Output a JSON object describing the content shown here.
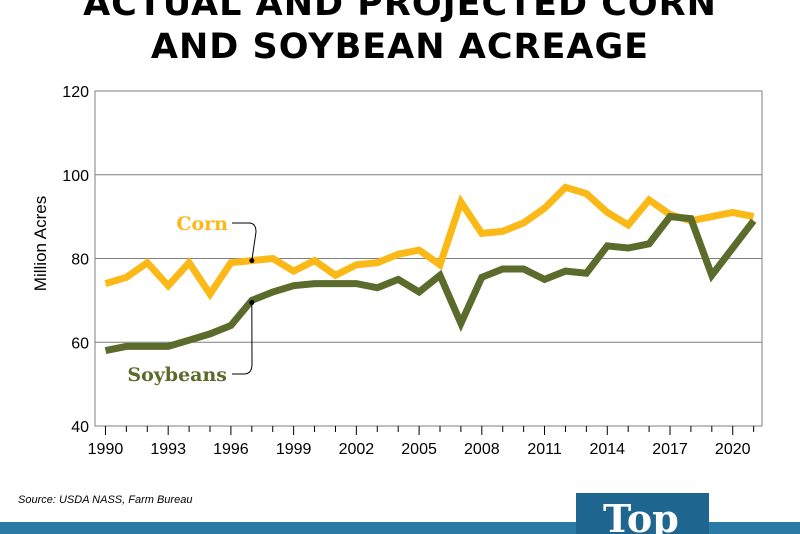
{
  "title_lines": [
    "ACTUAL AND PROJECTED CORN",
    "AND SOYBEAN ACREAGE"
  ],
  "source": "Source: USDA NASS, Farm Bureau",
  "logo_text": "Top",
  "colors": {
    "corn": "#fbb918",
    "soybeans": "#5b6b2b",
    "grid": "#7f7f7f",
    "footer_bar": "#2a7aa6",
    "logo_box": "#1e6590"
  },
  "chart_data": {
    "type": "line",
    "title": "ACTUAL AND PROJECTED CORN AND SOYBEAN ACREAGE",
    "xlabel": "",
    "ylabel": "Million Acres",
    "ylim": [
      40,
      120
    ],
    "yticks": [
      40,
      60,
      80,
      100,
      120
    ],
    "xlim": [
      1990,
      2021
    ],
    "xticks": [
      1990,
      1993,
      1996,
      1999,
      2002,
      2005,
      2008,
      2011,
      2014,
      2017,
      2020
    ],
    "grid": "horizontal",
    "x": [
      1990,
      1991,
      1992,
      1993,
      1994,
      1995,
      1996,
      1997,
      1998,
      1999,
      2000,
      2001,
      2002,
      2003,
      2004,
      2005,
      2006,
      2007,
      2008,
      2009,
      2010,
      2011,
      2012,
      2013,
      2014,
      2015,
      2016,
      2017,
      2018,
      2019,
      2020,
      2021
    ],
    "series": [
      {
        "name": "Corn",
        "color": "#fbb918",
        "values": [
          74,
          75.5,
          79,
          73.5,
          79,
          71.5,
          79,
          79.5,
          80,
          77,
          79.5,
          76,
          78.5,
          79,
          81,
          82,
          78.5,
          93.5,
          86,
          86.5,
          88.5,
          92,
          97,
          95.5,
          91,
          88,
          94,
          90.5,
          89,
          90,
          91,
          90
        ]
      },
      {
        "name": "Soybeans",
        "color": "#5b6b2b",
        "values": [
          58,
          59,
          59,
          59,
          60.5,
          62,
          64,
          70,
          72,
          73.5,
          74,
          74,
          74,
          73,
          75,
          72,
          76,
          64.5,
          75.5,
          77.5,
          77.5,
          75,
          77,
          76.5,
          83,
          82.5,
          83.5,
          90,
          89.5,
          76,
          82.5,
          89
        ]
      }
    ],
    "annotations": [
      {
        "text": "Corn",
        "series": "Corn",
        "x": 1997,
        "y": 79.5
      },
      {
        "text": "Soybeans",
        "series": "Soybeans",
        "x": 1997,
        "y": 69.5
      }
    ]
  }
}
